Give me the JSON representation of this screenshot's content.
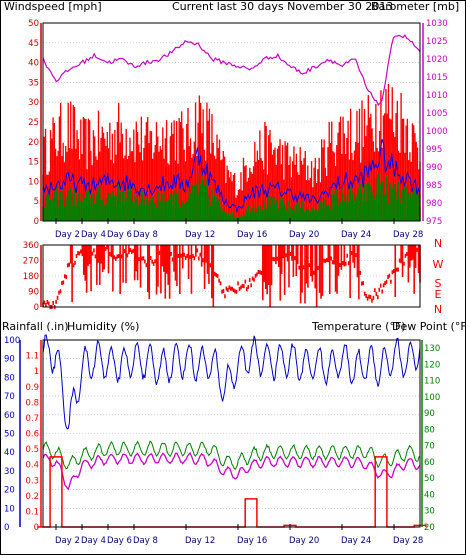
{
  "header": {
    "left": "Windspeed [mph]",
    "center": "Current last 30 days November 30 2013",
    "right": "Barometer [mb]"
  },
  "bottom_header": {
    "rainfall": "Rainfall (.in)",
    "humidity": "Humidity (%)",
    "temperature": "Temperature (°F)",
    "dewpoint": "Dew Point (°F)"
  },
  "colors": {
    "wind_max": "#ff0000",
    "wind_avg": "#0000ff",
    "wind_min": "#008000",
    "barometer": "#cc00cc",
    "direction": "#ff0000",
    "rainfall": "#ff0000",
    "humidity": "#0000cc",
    "temperature": "#008000",
    "dewpoint": "#cc00cc",
    "axis_wind": "#cc0000",
    "axis_baro": "#cc00cc",
    "axis_hum": "#0000cc",
    "axis_temp": "#008000",
    "day_label": "#000080",
    "grid": "#b4b4b4"
  },
  "day_labels": [
    "Day 2",
    "Day 4",
    "Day 6",
    "Day 8",
    "Day 12",
    "Day 16",
    "Day 20",
    "Day 24",
    "Day 28"
  ],
  "compass_letters": [
    "N",
    "W",
    "S",
    "E",
    "N"
  ],
  "chart_data": [
    {
      "type": "line",
      "title": "Current last 30 days November 30 2013",
      "x_label_ticks": [
        "Day 2",
        "Day 4",
        "Day 6",
        "Day 8",
        "Day 12",
        "Day 16",
        "Day 20",
        "Day 24",
        "Day 28"
      ],
      "y_left": {
        "label": "Windspeed [mph]",
        "range": [
          0,
          50
        ],
        "ticks": [
          0,
          5,
          10,
          15,
          20,
          25,
          30,
          35,
          40,
          45,
          50
        ]
      },
      "y_right": {
        "label": "Barometer [mb]",
        "range": [
          975,
          1030
        ],
        "ticks": [
          975,
          980,
          985,
          990,
          995,
          1000,
          1005,
          1010,
          1015,
          1020,
          1025,
          1030
        ]
      },
      "series": [
        {
          "name": "Windspeed max",
          "axis": "left",
          "style": "bars",
          "x": [
            1,
            2,
            3,
            4,
            5,
            6,
            7,
            8,
            9,
            10,
            11,
            12,
            13,
            14,
            15,
            16,
            17,
            18,
            19,
            20,
            21,
            22,
            23,
            24,
            25,
            26,
            27,
            28,
            29,
            30
          ],
          "values": [
            19,
            24,
            27,
            22,
            23,
            24,
            26,
            25,
            22,
            24,
            26,
            23,
            30,
            24,
            14,
            10,
            19,
            21,
            20,
            17,
            16,
            14,
            22,
            26,
            25,
            27,
            33,
            31,
            28,
            18
          ]
        },
        {
          "name": "Windspeed average",
          "axis": "left",
          "x": [
            1,
            2,
            3,
            4,
            5,
            6,
            7,
            8,
            9,
            10,
            11,
            12,
            13,
            14,
            15,
            16,
            17,
            18,
            19,
            20,
            21,
            22,
            23,
            24,
            25,
            26,
            27,
            28,
            29,
            30
          ],
          "values": [
            8,
            9,
            10,
            9,
            9,
            10,
            10,
            9,
            8,
            9,
            10,
            9,
            17,
            10,
            5,
            3,
            7,
            8,
            8,
            7,
            6,
            5,
            8,
            10,
            10,
            12,
            17,
            13,
            11,
            8
          ]
        },
        {
          "name": "Windspeed min",
          "axis": "left",
          "style": "bars",
          "x": [
            1,
            2,
            3,
            4,
            5,
            6,
            7,
            8,
            9,
            10,
            11,
            12,
            13,
            14,
            15,
            16,
            17,
            18,
            19,
            20,
            21,
            22,
            23,
            24,
            25,
            26,
            27,
            28,
            29,
            30
          ],
          "values": [
            6,
            7,
            7,
            6,
            7,
            7,
            8,
            7,
            6,
            7,
            7,
            6,
            10,
            7,
            3,
            1,
            4,
            5,
            5,
            4,
            4,
            3,
            6,
            7,
            7,
            8,
            10,
            8,
            7,
            6
          ]
        },
        {
          "name": "Barometer",
          "axis": "right",
          "x": [
            1,
            2,
            3,
            4,
            5,
            6,
            7,
            8,
            9,
            10,
            11,
            12,
            13,
            14,
            15,
            16,
            17,
            18,
            19,
            20,
            21,
            22,
            23,
            24,
            25,
            26,
            27,
            28,
            29,
            30
          ],
          "values": [
            1020,
            1014,
            1017,
            1019,
            1021,
            1019,
            1020,
            1018,
            1019,
            1020,
            1022,
            1025,
            1024,
            1020,
            1019,
            1018,
            1017,
            1020,
            1021,
            1018,
            1016,
            1018,
            1020,
            1018,
            1020,
            1011,
            1007,
            1027,
            1026,
            1022
          ]
        }
      ]
    },
    {
      "type": "scatter",
      "title": "",
      "y": {
        "range": [
          0,
          360
        ],
        "ticks": [
          0,
          90,
          180,
          270,
          360
        ],
        "right_labels": [
          "N",
          "W",
          "S",
          "E",
          "N"
        ]
      },
      "series": [
        {
          "name": "Wind direction",
          "style": "bars",
          "x": [
            1,
            2,
            3,
            4,
            5,
            6,
            7,
            8,
            9,
            10,
            11,
            12,
            13,
            14,
            15,
            16,
            17,
            18,
            19,
            20,
            21,
            22,
            23,
            24,
            25,
            26,
            27,
            28,
            29,
            30
          ],
          "values": [
            0,
            0,
            250,
            300,
            310,
            320,
            300,
            320,
            250,
            300,
            280,
            300,
            310,
            240,
            80,
            110,
            140,
            220,
            270,
            300,
            240,
            200,
            300,
            250,
            300,
            40,
            100,
            200,
            300,
            340
          ]
        }
      ]
    },
    {
      "type": "line",
      "title": "",
      "x_label_ticks": [
        "Day 2",
        "Day 4",
        "Day 6",
        "Day 8",
        "Day 12",
        "Day 16",
        "Day 20",
        "Day 24",
        "Day 28"
      ],
      "y_left_outer": {
        "label": "Humidity (%)",
        "range": [
          0,
          100
        ],
        "ticks": [
          0,
          10,
          20,
          30,
          40,
          50,
          60,
          70,
          80,
          90,
          100
        ]
      },
      "y_left_inner": {
        "label": "Rainfall (.in)",
        "range": [
          0,
          1.2
        ],
        "ticks": [
          0,
          0.1,
          0.2,
          0.3,
          0.4,
          0.5,
          0.6,
          0.7,
          0.8,
          0.9,
          1,
          1.1
        ]
      },
      "y_right": {
        "label": "Temperature (°F)",
        "range": [
          20,
          135
        ],
        "ticks": [
          20,
          30,
          40,
          50,
          60,
          70,
          80,
          90,
          100,
          110,
          120,
          130
        ]
      },
      "series": [
        {
          "name": "Humidity",
          "axis": "left_outer",
          "x": [
            1,
            2,
            3,
            4,
            5,
            6,
            7,
            8,
            9,
            10,
            11,
            12,
            13,
            14,
            15,
            16,
            17,
            18,
            19,
            20,
            21,
            22,
            23,
            24,
            25,
            26,
            27,
            28,
            29,
            30
          ],
          "values": [
            94,
            92,
            55,
            85,
            90,
            88,
            86,
            90,
            88,
            85,
            88,
            90,
            87,
            88,
            74,
            87,
            92,
            90,
            88,
            90,
            86,
            88,
            85,
            90,
            84,
            88,
            85,
            92,
            88,
            95
          ]
        },
        {
          "name": "Rainfall",
          "axis": "left_inner",
          "style": "step",
          "x": [
            1,
            2,
            3,
            4,
            5,
            6,
            7,
            8,
            9,
            10,
            11,
            12,
            13,
            14,
            15,
            16,
            17,
            18,
            19,
            20,
            21,
            22,
            23,
            24,
            25,
            26,
            27,
            28,
            29,
            30
          ],
          "values": [
            0,
            0.45,
            0,
            0,
            0,
            0,
            0,
            0,
            0,
            0,
            0,
            0,
            0,
            0,
            0,
            0,
            0.18,
            0,
            0,
            0.01,
            0,
            0,
            0,
            0,
            0,
            0,
            0.45,
            0,
            0,
            0.01
          ]
        },
        {
          "name": "Temperature",
          "axis": "right",
          "x": [
            1,
            2,
            3,
            4,
            5,
            6,
            7,
            8,
            9,
            10,
            11,
            12,
            13,
            14,
            15,
            16,
            17,
            18,
            19,
            20,
            21,
            22,
            23,
            24,
            25,
            26,
            27,
            28,
            29,
            30
          ],
          "values": [
            68,
            66,
            58,
            64,
            66,
            68,
            68,
            68,
            68,
            68,
            68,
            68,
            68,
            68,
            60,
            60,
            64,
            66,
            66,
            66,
            66,
            66,
            66,
            66,
            66,
            66,
            60,
            62,
            66,
            64
          ]
        },
        {
          "name": "Dew Point",
          "axis": "right",
          "x": [
            1,
            2,
            3,
            4,
            5,
            6,
            7,
            8,
            9,
            10,
            11,
            12,
            13,
            14,
            15,
            16,
            17,
            18,
            19,
            20,
            21,
            22,
            23,
            24,
            25,
            26,
            27,
            28,
            29,
            30
          ],
          "values": [
            62,
            60,
            44,
            58,
            60,
            62,
            62,
            62,
            62,
            62,
            62,
            62,
            62,
            60,
            54,
            52,
            58,
            60,
            60,
            60,
            60,
            60,
            60,
            60,
            60,
            58,
            52,
            54,
            60,
            58
          ]
        }
      ]
    }
  ]
}
